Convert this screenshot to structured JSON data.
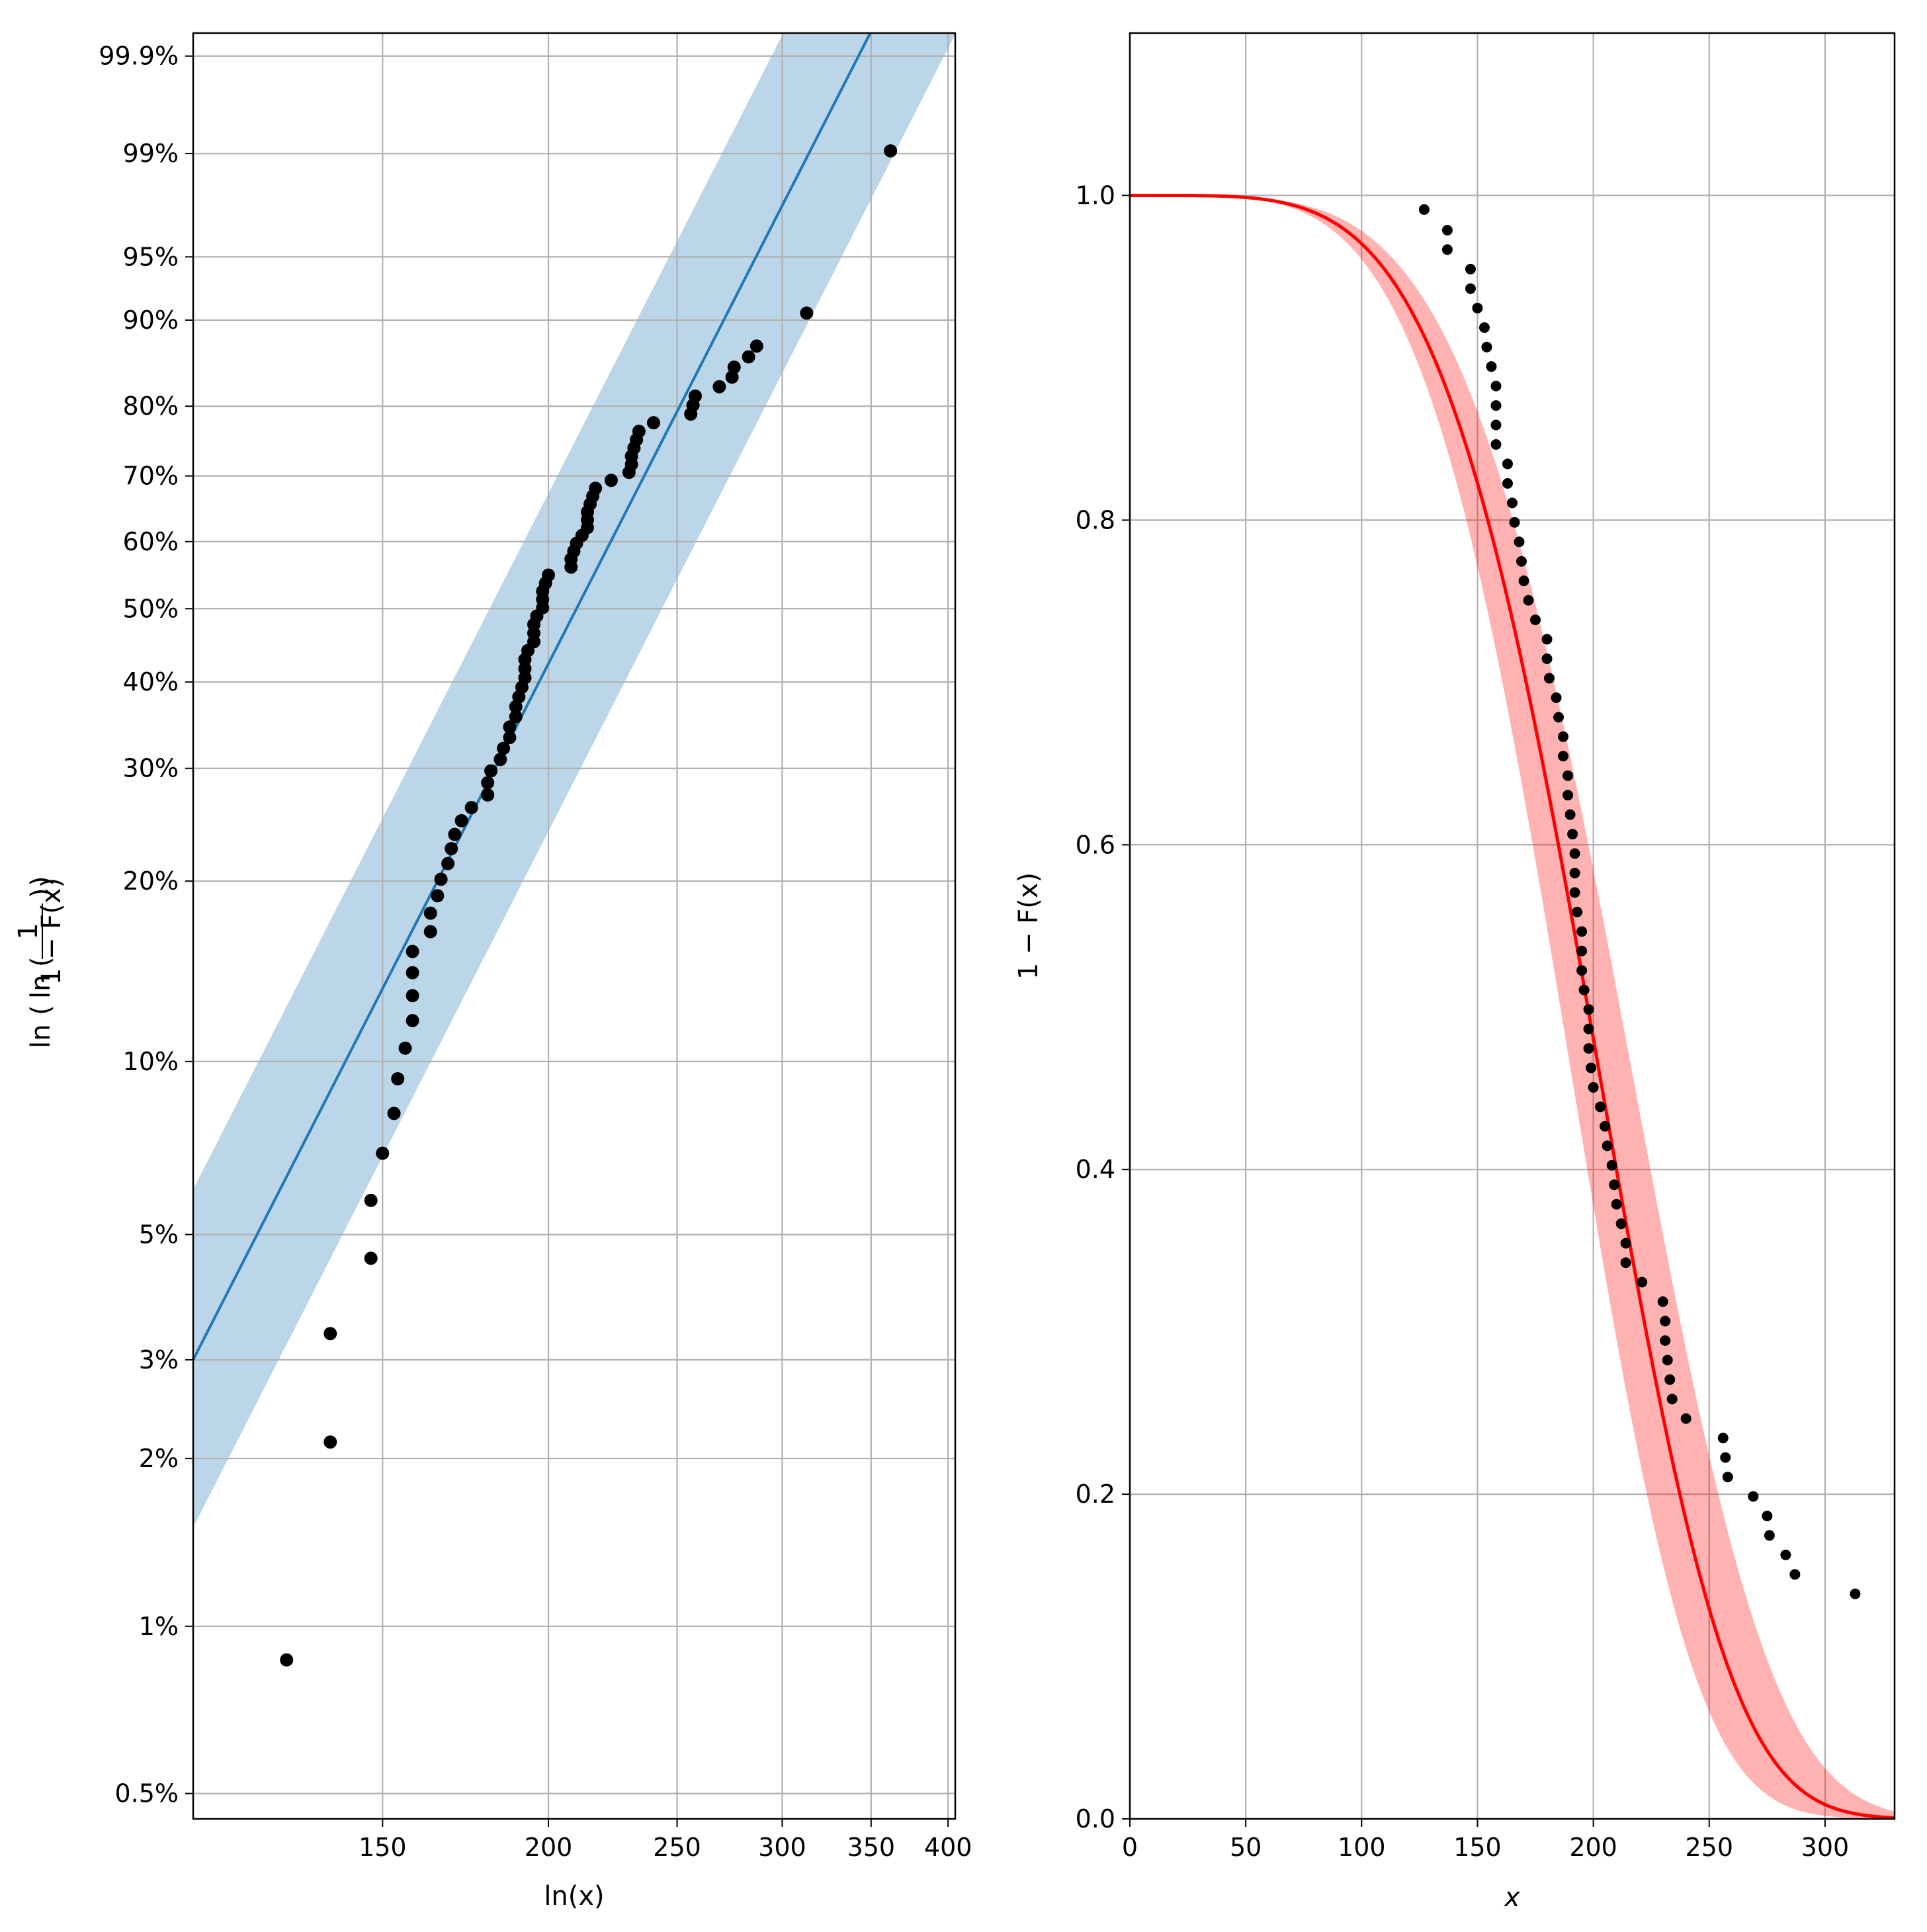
{
  "chart_data": [
    {
      "type": "scatter",
      "title": "",
      "xlabel": "ln(x)",
      "ylabel_parts": [
        "ln",
        "1",
        "1 − F(x)"
      ],
      "x_scale": "log",
      "y_scale": "weibull",
      "xlim": [
        108,
        405
      ],
      "ylim": [
        0.0045,
        0.9995
      ],
      "grid": true,
      "xticks": [
        150,
        200,
        250,
        300,
        350,
        400
      ],
      "xtick_labels": [
        "150",
        "200",
        "250",
        "300",
        "350",
        "400"
      ],
      "yticks": [
        0.005,
        0.01,
        0.02,
        0.03,
        0.05,
        0.1,
        0.2,
        0.3,
        0.4,
        0.5,
        0.6,
        0.7,
        0.8,
        0.9,
        0.95,
        0.99,
        0.999
      ],
      "ytick_labels": [
        "0.5%",
        "1%",
        "2%",
        "3%",
        "5%",
        "10%",
        "20%",
        "30%",
        "40%",
        "50%",
        "60%",
        "70%",
        "80%",
        "90%",
        "95%",
        "99%",
        "99.9%"
      ],
      "fit_line": {
        "color": "#1f77b4",
        "band_color": "#1f77b4",
        "scale": 227,
        "shape": 4.7,
        "band_factor_upper": 1.16,
        "band_factor_lower": 0.86
      },
      "points": {
        "color": "#000000",
        "x": [
          127,
          137,
          137,
          147,
          147,
          150,
          153,
          154,
          156,
          158,
          158,
          158,
          158,
          163,
          163,
          165,
          166,
          168,
          169,
          170,
          172,
          175,
          180,
          180,
          181,
          184,
          185,
          187,
          187,
          189,
          189,
          190,
          191,
          192,
          192,
          192,
          193,
          195,
          195,
          195,
          196,
          198,
          198,
          198,
          199,
          200,
          208,
          208,
          209,
          210,
          212,
          214,
          214,
          214,
          215,
          216,
          217,
          223,
          230,
          231,
          231,
          232,
          233,
          234,
          240,
          256,
          257,
          258,
          269,
          275,
          276,
          283,
          287,
          313,
          362
        ],
        "y": [
          0.0087,
          0.0214,
          0.0334,
          0.0454,
          0.0574,
          0.0694,
          0.0814,
          0.0934,
          0.1054,
          0.1174,
          0.1294,
          0.1414,
          0.1534,
          0.1654,
          0.1774,
          0.1894,
          0.2014,
          0.2134,
          0.2254,
          0.2374,
          0.2494,
          0.2614,
          0.2734,
          0.2854,
          0.2974,
          0.3094,
          0.3214,
          0.3334,
          0.3454,
          0.3574,
          0.3694,
          0.3814,
          0.3934,
          0.4054,
          0.4174,
          0.4294,
          0.4414,
          0.4534,
          0.4654,
          0.4774,
          0.4894,
          0.5014,
          0.5134,
          0.5254,
          0.5374,
          0.5494,
          0.5614,
          0.5734,
          0.5854,
          0.5974,
          0.6094,
          0.6214,
          0.6334,
          0.6454,
          0.6574,
          0.6694,
          0.6814,
          0.6934,
          0.7054,
          0.7174,
          0.7294,
          0.7414,
          0.7534,
          0.7654,
          0.7774,
          0.7894,
          0.8014,
          0.8134,
          0.8254,
          0.8374,
          0.8494,
          0.8614,
          0.8734,
          0.9066,
          0.9905
        ]
      }
    },
    {
      "type": "line",
      "title": "",
      "xlabel": "x",
      "ylabel": "1 − F(x)",
      "xlim": [
        0,
        330
      ],
      "ylim": [
        0,
        1.1
      ],
      "grid": true,
      "xticks": [
        0,
        50,
        100,
        150,
        200,
        250,
        300
      ],
      "xtick_labels": [
        "0",
        "50",
        "100",
        "150",
        "200",
        "250",
        "300"
      ],
      "yticks": [
        0,
        0.2,
        0.4,
        0.6,
        0.8,
        1.0
      ],
      "ytick_labels": [
        "0.0",
        "0.2",
        "0.4",
        "0.6",
        "0.8",
        "1.0"
      ],
      "fit_line": {
        "color": "#ff0000",
        "band_color": "#ff0000",
        "scale": 214,
        "shape": 4.6,
        "band_factor_upper": 1.07,
        "band_factor_lower": 0.94
      },
      "points": {
        "color": "#000000",
        "x": [
          127,
          137,
          137,
          147,
          147,
          150,
          153,
          154,
          156,
          158,
          158,
          158,
          158,
          163,
          163,
          165,
          166,
          168,
          169,
          170,
          172,
          175,
          180,
          180,
          181,
          184,
          185,
          187,
          187,
          189,
          189,
          190,
          191,
          192,
          192,
          192,
          193,
          195,
          195,
          195,
          196,
          198,
          198,
          198,
          199,
          200,
          203,
          205,
          206,
          208,
          209,
          210,
          212,
          214,
          214,
          221,
          230,
          231,
          231,
          232,
          233,
          234,
          240,
          256,
          257,
          258,
          269,
          275,
          276,
          283,
          287,
          313
        ],
        "y": [
          0.9913,
          0.9786,
          0.9666,
          0.9546,
          0.9426,
          0.9306,
          0.9186,
          0.9066,
          0.8946,
          0.8826,
          0.8706,
          0.8586,
          0.8466,
          0.8346,
          0.8226,
          0.8106,
          0.7986,
          0.7866,
          0.7746,
          0.7626,
          0.7506,
          0.7386,
          0.7266,
          0.7146,
          0.7026,
          0.6906,
          0.6786,
          0.6666,
          0.6546,
          0.6426,
          0.6306,
          0.6186,
          0.6066,
          0.5946,
          0.5826,
          0.5706,
          0.5586,
          0.5466,
          0.5346,
          0.5226,
          0.5106,
          0.4986,
          0.4866,
          0.4746,
          0.4626,
          0.4506,
          0.4386,
          0.4266,
          0.4146,
          0.4026,
          0.3906,
          0.3786,
          0.3666,
          0.3546,
          0.3426,
          0.3306,
          0.3186,
          0.3066,
          0.2946,
          0.2826,
          0.2706,
          0.2586,
          0.2466,
          0.2346,
          0.2226,
          0.2106,
          0.1986,
          0.1866,
          0.1746,
          0.1626,
          0.1506,
          0.1386
        ]
      }
    }
  ]
}
